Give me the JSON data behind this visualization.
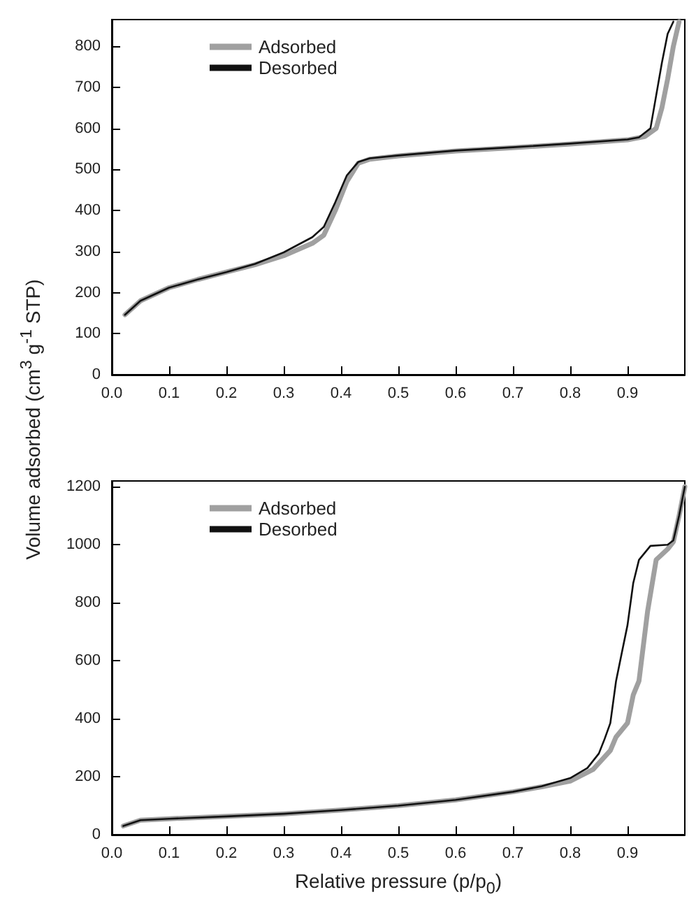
{
  "chart_data": [
    {
      "type": "line",
      "ylabel": "Volume adsorbed (cm$^{3}$ g$^{-1}$ STP)",
      "xlim": [
        0,
        1
      ],
      "ylim": [
        0,
        865
      ],
      "xticks": [
        {
          "value": 0,
          "label": "0.0"
        },
        {
          "value": 0.1,
          "label": "0.1"
        },
        {
          "value": 0.2,
          "label": "0.2"
        },
        {
          "value": 0.3,
          "label": "0.3"
        },
        {
          "value": 0.4,
          "label": "0.4"
        },
        {
          "value": 0.5,
          "label": "0.5"
        },
        {
          "value": 0.6,
          "label": "0.6"
        },
        {
          "value": 0.7,
          "label": "0.7"
        },
        {
          "value": 0.8,
          "label": "0.8"
        },
        {
          "value": 0.9,
          "label": "0.9"
        }
      ],
      "yticks": [
        0,
        100,
        200,
        300,
        400,
        500,
        600,
        700,
        800
      ],
      "legend": "top left",
      "marker": "none",
      "line_style": "solid",
      "grid": false,
      "series": [
        {
          "name": "Adsorbed",
          "color": "#a0a0a0",
          "x": [
            0.023,
            0.05,
            0.1,
            0.15,
            0.2,
            0.25,
            0.3,
            0.35,
            0.37,
            0.39,
            0.41,
            0.43,
            0.45,
            0.5,
            0.6,
            0.7,
            0.8,
            0.9,
            0.93,
            0.95,
            0.96,
            0.97,
            0.98,
            0.99
          ],
          "values": [
            146,
            180,
            212,
            232,
            250,
            268,
            290,
            320,
            340,
            400,
            470,
            515,
            525,
            533,
            545,
            553,
            562,
            572,
            580,
            600,
            650,
            720,
            800,
            860
          ]
        },
        {
          "name": "Desorbed",
          "color": "#111111",
          "x": [
            0.023,
            0.05,
            0.1,
            0.15,
            0.2,
            0.25,
            0.3,
            0.35,
            0.37,
            0.39,
            0.41,
            0.43,
            0.45,
            0.5,
            0.6,
            0.7,
            0.8,
            0.9,
            0.92,
            0.94,
            0.95,
            0.96,
            0.97,
            0.98
          ],
          "values": [
            146,
            180,
            212,
            232,
            250,
            270,
            298,
            335,
            360,
            420,
            485,
            518,
            527,
            534,
            546,
            554,
            563,
            573,
            578,
            600,
            680,
            760,
            830,
            860
          ]
        }
      ]
    },
    {
      "type": "line",
      "xlabel": "Relative pressure (p/p$_{0}$)",
      "xlim": [
        0,
        1
      ],
      "ylim": [
        0,
        1220
      ],
      "xticks": [
        {
          "value": 0,
          "label": "0.0"
        },
        {
          "value": 0.1,
          "label": "0.1"
        },
        {
          "value": 0.2,
          "label": "0.2"
        },
        {
          "value": 0.3,
          "label": "0.3"
        },
        {
          "value": 0.4,
          "label": "0.4"
        },
        {
          "value": 0.5,
          "label": "0.5"
        },
        {
          "value": 0.6,
          "label": "0.6"
        },
        {
          "value": 0.7,
          "label": "0.7"
        },
        {
          "value": 0.8,
          "label": "0.8"
        },
        {
          "value": 0.9,
          "label": "0.9"
        }
      ],
      "yticks": [
        0,
        200,
        400,
        600,
        800,
        1000,
        1200
      ],
      "legend": "top left",
      "marker": "none",
      "line_style": "solid",
      "grid": false,
      "series": [
        {
          "name": "Adsorbed",
          "color": "#a0a0a0",
          "x": [
            0.02,
            0.05,
            0.1,
            0.2,
            0.3,
            0.4,
            0.5,
            0.6,
            0.7,
            0.75,
            0.8,
            0.84,
            0.87,
            0.88,
            0.9,
            0.91,
            0.92,
            0.935,
            0.95,
            0.97,
            0.98,
            0.99,
            1.0
          ],
          "values": [
            30,
            50,
            55,
            63,
            72,
            85,
            100,
            120,
            148,
            165,
            185,
            225,
            290,
            337,
            385,
            482,
            530,
            770,
            948,
            985,
            1010,
            1100,
            1200
          ]
        },
        {
          "name": "Desorbed",
          "color": "#111111",
          "x": [
            0.02,
            0.05,
            0.1,
            0.2,
            0.3,
            0.4,
            0.5,
            0.6,
            0.7,
            0.75,
            0.8,
            0.83,
            0.85,
            0.86,
            0.87,
            0.88,
            0.89,
            0.9,
            0.91,
            0.92,
            0.94,
            0.97,
            0.98,
            0.99,
            1.0
          ],
          "values": [
            30,
            50,
            55,
            63,
            72,
            85,
            100,
            120,
            148,
            167,
            195,
            230,
            280,
            330,
            385,
            530,
            627,
            723,
            868,
            948,
            996,
            1000,
            1015,
            1100,
            1200
          ]
        }
      ]
    }
  ]
}
